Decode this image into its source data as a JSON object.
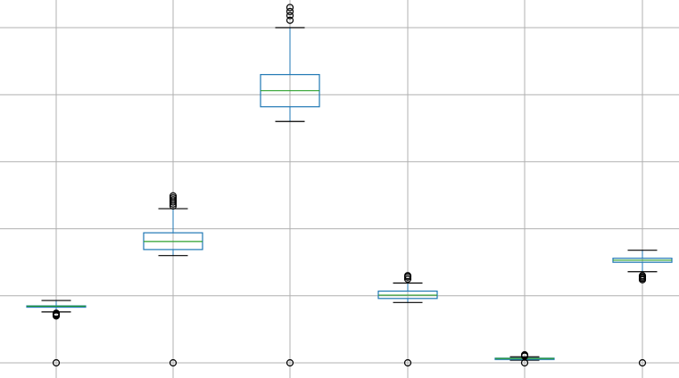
{
  "chart_data": {
    "type": "box",
    "grid": true,
    "y_scale": "linear",
    "ylim": [
      0,
      720
    ],
    "gridlines_y": [
      0,
      100,
      200,
      300,
      400,
      500
    ],
    "colors": {
      "box": "#1f77b4",
      "median": "#2ca02c",
      "whisker": "#000000",
      "flier": "#000000",
      "grid": "#b0b0b0"
    },
    "series": [
      {
        "q1": 84,
        "median": 84.5,
        "q3": 85,
        "whisker_low": 76,
        "whisker_high": 93,
        "fliers": [
          74,
          73,
          72,
          71,
          70,
          0
        ]
      },
      {
        "q1": 169,
        "median": 181,
        "q3": 194,
        "whisker_low": 160,
        "whisker_high": 230,
        "fliers": [
          234,
          237,
          240,
          243,
          246,
          249,
          0
        ]
      },
      {
        "q1": 382,
        "median": 406,
        "q3": 430,
        "whisker_low": 360,
        "whisker_high": 500,
        "fliers": [
          511,
          518,
          524,
          530,
          0
        ]
      },
      {
        "q1": 96,
        "median": 101,
        "q3": 107,
        "whisker_low": 90,
        "whisker_high": 119,
        "fliers": [
          125,
          128,
          130,
          0
        ]
      },
      {
        "q1": 6,
        "median": 6.5,
        "q3": 7,
        "whisker_low": 4,
        "whisker_high": 9,
        "fliers": [
          12,
          11,
          10,
          0
        ]
      },
      {
        "q1": 150,
        "median": 153,
        "q3": 156,
        "whisker_low": 136,
        "whisker_high": 168,
        "fliers": [
          130,
          128,
          126,
          124,
          0
        ]
      }
    ]
  }
}
